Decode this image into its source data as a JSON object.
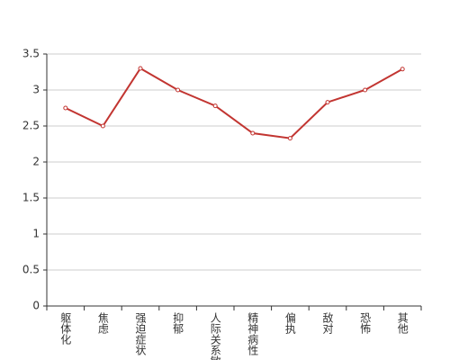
{
  "chart_data": {
    "type": "line",
    "categories": [
      "躯体化",
      "焦虑",
      "强迫症状",
      "抑郁",
      "人际关系敏感",
      "精神病性",
      "偏执",
      "敌对",
      "恐怖",
      "其他"
    ],
    "values": [
      2.75,
      2.5,
      3.3,
      3.0,
      2.78,
      2.4,
      2.33,
      2.83,
      3.0,
      3.29
    ],
    "color": "#c23531",
    "ylim": [
      0,
      3.5
    ],
    "yticks": [
      0,
      0.5,
      1,
      1.5,
      2,
      2.5,
      3,
      3.5
    ],
    "grid": true
  }
}
